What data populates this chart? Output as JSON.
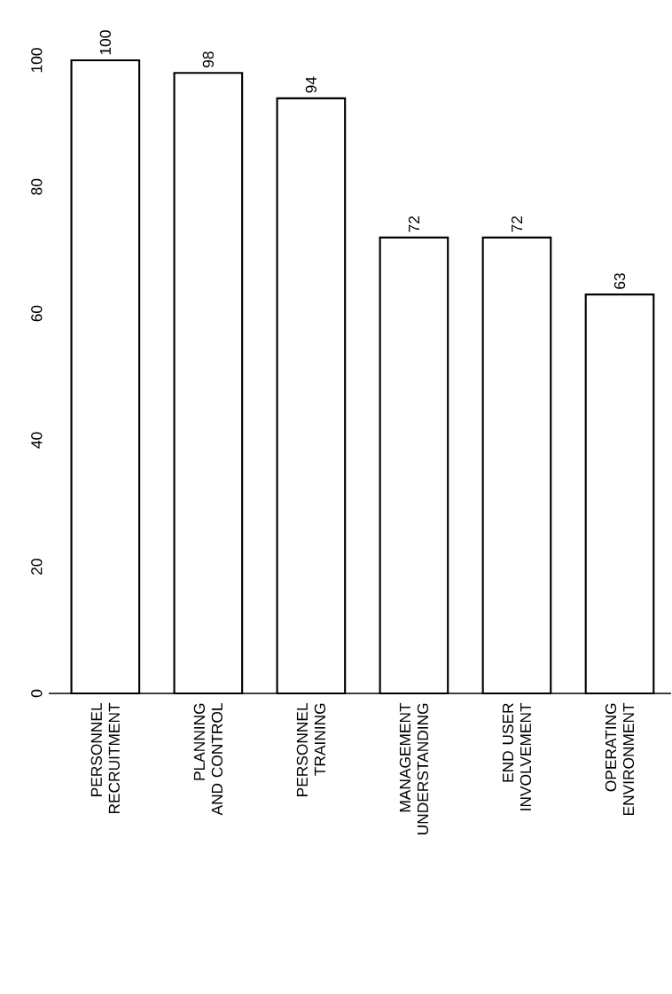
{
  "chart_data": {
    "type": "bar",
    "categories": [
      "PERSONNEL RECRUITMENT",
      "PLANNING AND CONTROL",
      "PERSONNEL TRAINING",
      "MANAGEMENT UNDERSTANDING",
      "END USER INVOLVEMENT",
      "OPERATING ENVIRONMENT"
    ],
    "values": [
      100,
      98,
      94,
      72,
      72,
      63
    ],
    "color": "#ffffff",
    "ylim": [
      0,
      100
    ],
    "yticks": [
      0,
      20,
      40,
      60,
      80,
      100
    ],
    "data_labels": true
  }
}
